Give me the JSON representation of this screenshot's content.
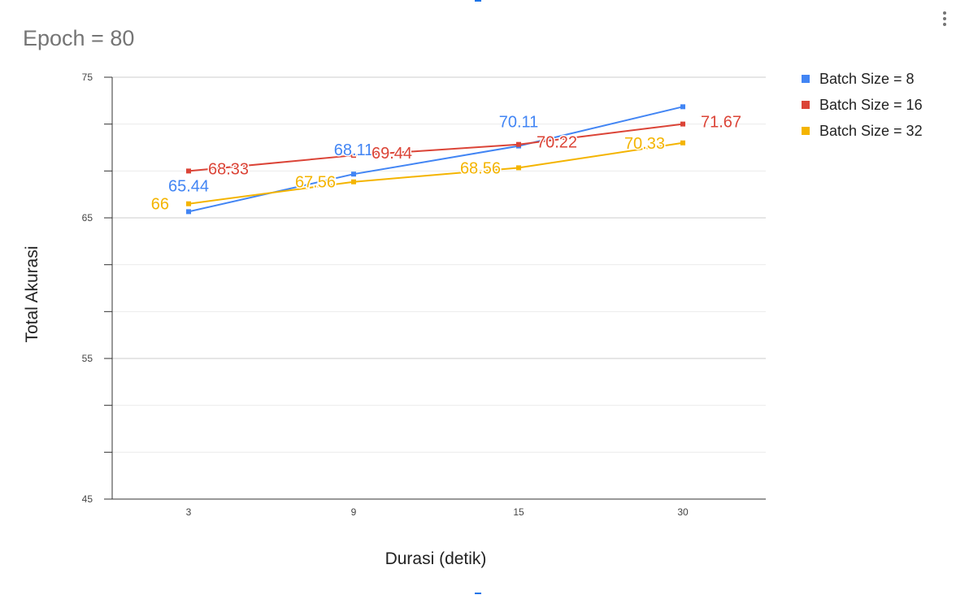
{
  "chart_data": {
    "type": "line",
    "title": "Epoch = 80",
    "xlabel": "Durasi (detik)",
    "ylabel": "Total Akurasi",
    "categories": [
      "3",
      "9",
      "15",
      "30"
    ],
    "ylim": [
      45,
      75
    ],
    "yticks": [
      "75",
      "65",
      "55",
      "45"
    ],
    "grid": true,
    "legend": "right",
    "series": [
      {
        "name": "Batch Size = 8",
        "color": "#4285f4",
        "values": [
          65.44,
          68.11,
          70.11,
          72.9
        ],
        "labels": [
          "65.44",
          "68.11",
          "70.11",
          ""
        ]
      },
      {
        "name": "Batch Size = 16",
        "color": "#db4437",
        "values": [
          68.33,
          69.44,
          70.22,
          71.67
        ],
        "labels": [
          "68.33",
          "69.44",
          "70.22",
          "71.67"
        ]
      },
      {
        "name": "Batch Size = 32",
        "color": "#f4b400",
        "values": [
          66,
          67.56,
          68.56,
          70.33
        ],
        "labels": [
          "66",
          "67.56",
          "68.56",
          "70.33"
        ]
      }
    ]
  }
}
